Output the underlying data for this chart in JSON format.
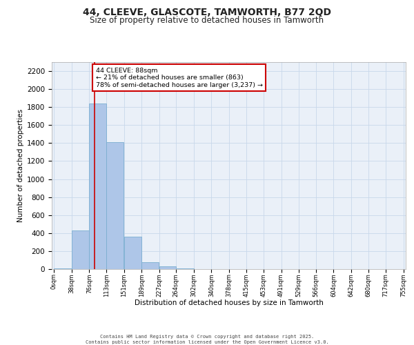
{
  "title_line1": "44, CLEEVE, GLASCOTE, TAMWORTH, B77 2QD",
  "title_line2": "Size of property relative to detached houses in Tamworth",
  "xlabel": "Distribution of detached houses by size in Tamworth",
  "ylabel": "Number of detached properties",
  "bin_labels": [
    "0sqm",
    "38sqm",
    "76sqm",
    "113sqm",
    "151sqm",
    "189sqm",
    "227sqm",
    "264sqm",
    "302sqm",
    "340sqm",
    "378sqm",
    "415sqm",
    "453sqm",
    "491sqm",
    "529sqm",
    "566sqm",
    "604sqm",
    "642sqm",
    "680sqm",
    "717sqm",
    "755sqm"
  ],
  "bin_edges": [
    0,
    38,
    76,
    113,
    151,
    189,
    227,
    264,
    302,
    340,
    378,
    415,
    453,
    491,
    529,
    566,
    604,
    642,
    680,
    717,
    755
  ],
  "bar_values": [
    10,
    430,
    1840,
    1410,
    360,
    75,
    30,
    10,
    0,
    0,
    0,
    0,
    0,
    0,
    0,
    0,
    0,
    0,
    0,
    0
  ],
  "bar_color": "#aec6e8",
  "bar_edge_color": "#7aaed0",
  "grid_color": "#c8d8ea",
  "background_color": "#eaf0f8",
  "annotation_text": "44 CLEEVE: 88sqm\n← 21% of detached houses are smaller (863)\n78% of semi-detached houses are larger (3,237) →",
  "annotation_box_edgecolor": "#cc0000",
  "vline_x": 88,
  "vline_color": "#cc0000",
  "ylim": [
    0,
    2300
  ],
  "yticks": [
    0,
    200,
    400,
    600,
    800,
    1000,
    1200,
    1400,
    1600,
    1800,
    2000,
    2200
  ],
  "footer_line1": "Contains HM Land Registry data © Crown copyright and database right 2025.",
  "footer_line2": "Contains public sector information licensed under the Open Government Licence v3.0."
}
